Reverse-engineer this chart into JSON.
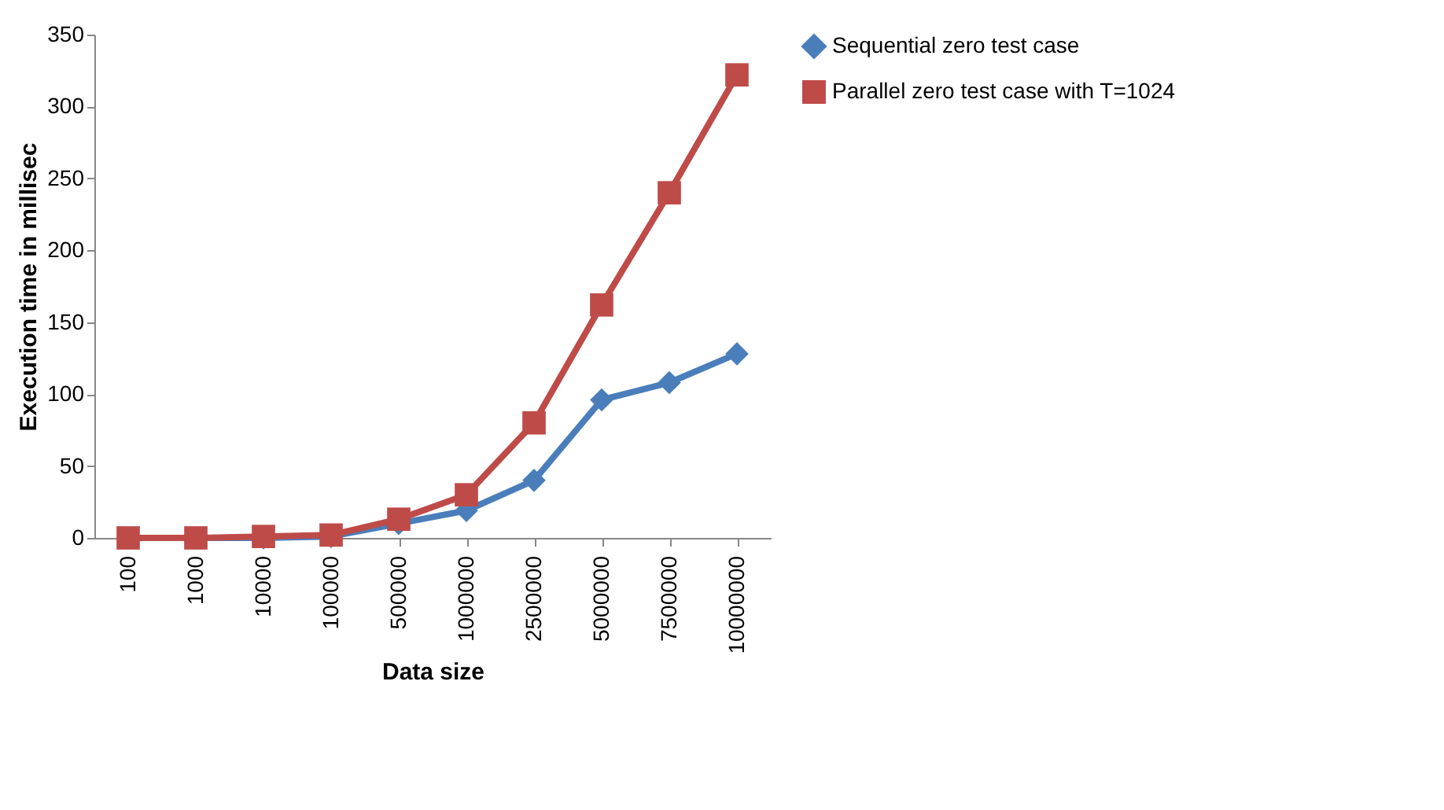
{
  "chart_data": {
    "type": "line",
    "xlabel": "Data size",
    "ylabel": "Execution time in millisec",
    "categories": [
      "100",
      "1000",
      "10000",
      "100000",
      "500000",
      "1000000",
      "2500000",
      "5000000",
      "7500000",
      "10000000"
    ],
    "series": [
      {
        "name": "Sequential zero test case",
        "color": "#4a7ebb",
        "marker": "diamond",
        "values": [
          0,
          0,
          0,
          1,
          10,
          19,
          40,
          96,
          108,
          128
        ]
      },
      {
        "name": "Parallel zero test case with T=1024",
        "color": "#be4b48",
        "marker": "square",
        "values": [
          0,
          0,
          1,
          2,
          13,
          30,
          80,
          162,
          240,
          322
        ]
      }
    ],
    "ylim": [
      0,
      350
    ],
    "yticks": [
      0,
      50,
      100,
      150,
      200,
      250,
      300,
      350
    ],
    "grid": false,
    "legend": "right",
    "line_style": "solid"
  }
}
